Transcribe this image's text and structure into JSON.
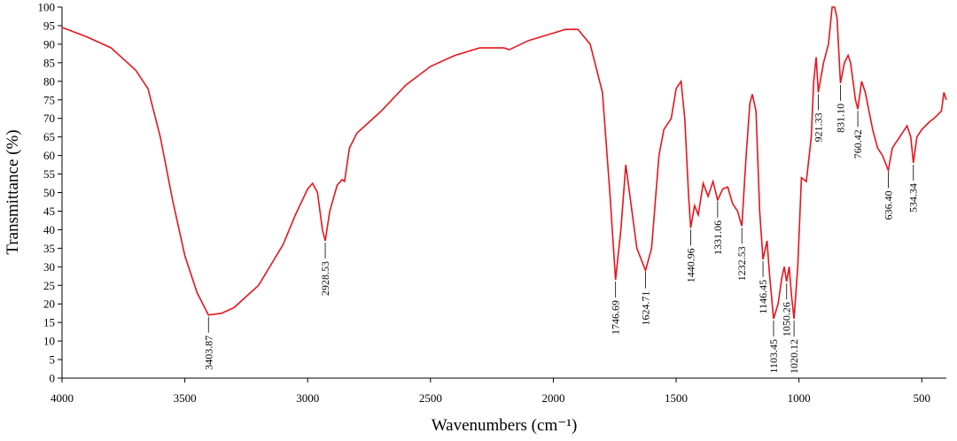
{
  "chart_data": {
    "type": "line",
    "x_label": "Wavenumbers (cm⁻¹)",
    "y_label": "Transmittance (%)",
    "color": "#e8141b",
    "xlim": [
      4000,
      400
    ],
    "ylim": [
      0,
      100
    ],
    "xticks": [
      4000,
      3500,
      3000,
      2500,
      2000,
      1500,
      1000,
      500
    ],
    "yticks": [
      0,
      5,
      10,
      15,
      20,
      25,
      30,
      35,
      40,
      45,
      50,
      55,
      60,
      65,
      70,
      75,
      80,
      85,
      90,
      95,
      100
    ],
    "x": [
      4000,
      3900,
      3800,
      3750,
      3700,
      3650,
      3600,
      3550,
      3500,
      3450,
      3403.87,
      3350,
      3300,
      3200,
      3100,
      3050,
      3000,
      2980,
      2960,
      2940,
      2928.53,
      2910,
      2880,
      2860,
      2850,
      2830,
      2800,
      2750,
      2700,
      2600,
      2500,
      2400,
      2300,
      2200,
      2180,
      2100,
      2000,
      1950,
      1900,
      1850,
      1800,
      1770,
      1746.69,
      1725,
      1705,
      1690,
      1660,
      1624.71,
      1600,
      1570,
      1550,
      1520,
      1500,
      1480,
      1465,
      1450,
      1440.96,
      1425,
      1410,
      1390,
      1370,
      1350,
      1331.06,
      1310,
      1290,
      1270,
      1250,
      1232.53,
      1215,
      1200,
      1190,
      1175,
      1160,
      1146.45,
      1130,
      1120,
      1103.45,
      1085,
      1070,
      1060,
      1050.26,
      1040,
      1030,
      1020.12,
      1005,
      990,
      970,
      950,
      940,
      930,
      921.33,
      900,
      880,
      865,
      855,
      845,
      831.1,
      815,
      800,
      790,
      770,
      760.42,
      745,
      730,
      700,
      680,
      660,
      636.4,
      620,
      600,
      580,
      560,
      545,
      534.34,
      520,
      500,
      470,
      450,
      420,
      410,
      400
    ],
    "values": [
      94.5,
      92,
      89,
      86,
      83,
      78,
      65,
      48,
      33,
      23,
      17,
      17.5,
      19,
      25,
      36,
      44,
      51,
      52.5,
      50,
      40,
      37,
      45,
      52,
      53.5,
      53,
      62,
      66,
      69,
      72,
      79,
      84,
      87,
      89,
      89,
      88.5,
      91,
      93,
      94,
      94,
      90,
      77,
      50,
      26.5,
      40,
      57.5,
      50,
      35,
      29,
      35,
      60,
      67,
      70,
      78,
      80,
      70,
      50,
      40.5,
      46.5,
      44,
      52.5,
      49,
      53,
      48,
      51,
      51.5,
      47,
      45,
      41,
      60,
      74,
      76.5,
      72,
      45,
      32,
      37,
      28,
      16,
      20,
      27,
      30,
      26,
      30,
      22,
      16,
      30,
      54,
      53,
      65,
      80,
      86.5,
      77,
      85,
      90,
      100,
      100,
      97,
      79.5,
      85,
      87,
      85,
      75,
      72.5,
      80,
      77,
      67,
      62,
      60,
      56,
      62,
      64,
      66,
      68,
      65,
      58,
      65,
      67,
      69,
      70,
      72,
      77,
      75
    ],
    "annotations": [
      {
        "text": "3403.87",
        "x": 3403.87,
        "y": 17
      },
      {
        "text": "2928.53",
        "x": 2928.53,
        "y": 37
      },
      {
        "text": "1746.69",
        "x": 1746.69,
        "y": 26.5
      },
      {
        "text": "1624.71",
        "x": 1624.71,
        "y": 29
      },
      {
        "text": "1440.96",
        "x": 1440.96,
        "y": 40.5
      },
      {
        "text": "1331.06",
        "x": 1331.06,
        "y": 48
      },
      {
        "text": "1232.53",
        "x": 1232.53,
        "y": 41
      },
      {
        "text": "1146.45",
        "x": 1146.45,
        "y": 32
      },
      {
        "text": "1103.45",
        "x": 1103.45,
        "y": 16
      },
      {
        "text": "1050.26",
        "x": 1050.26,
        "y": 26
      },
      {
        "text": "1020.12",
        "x": 1020.12,
        "y": 16
      },
      {
        "text": "921.33",
        "x": 921.33,
        "y": 77
      },
      {
        "text": "831.10",
        "x": 831.1,
        "y": 79.5
      },
      {
        "text": "760.42",
        "x": 760.42,
        "y": 72.5
      },
      {
        "text": "636.40",
        "x": 636.4,
        "y": 56
      },
      {
        "text": "534.34",
        "x": 534.34,
        "y": 58
      }
    ]
  }
}
